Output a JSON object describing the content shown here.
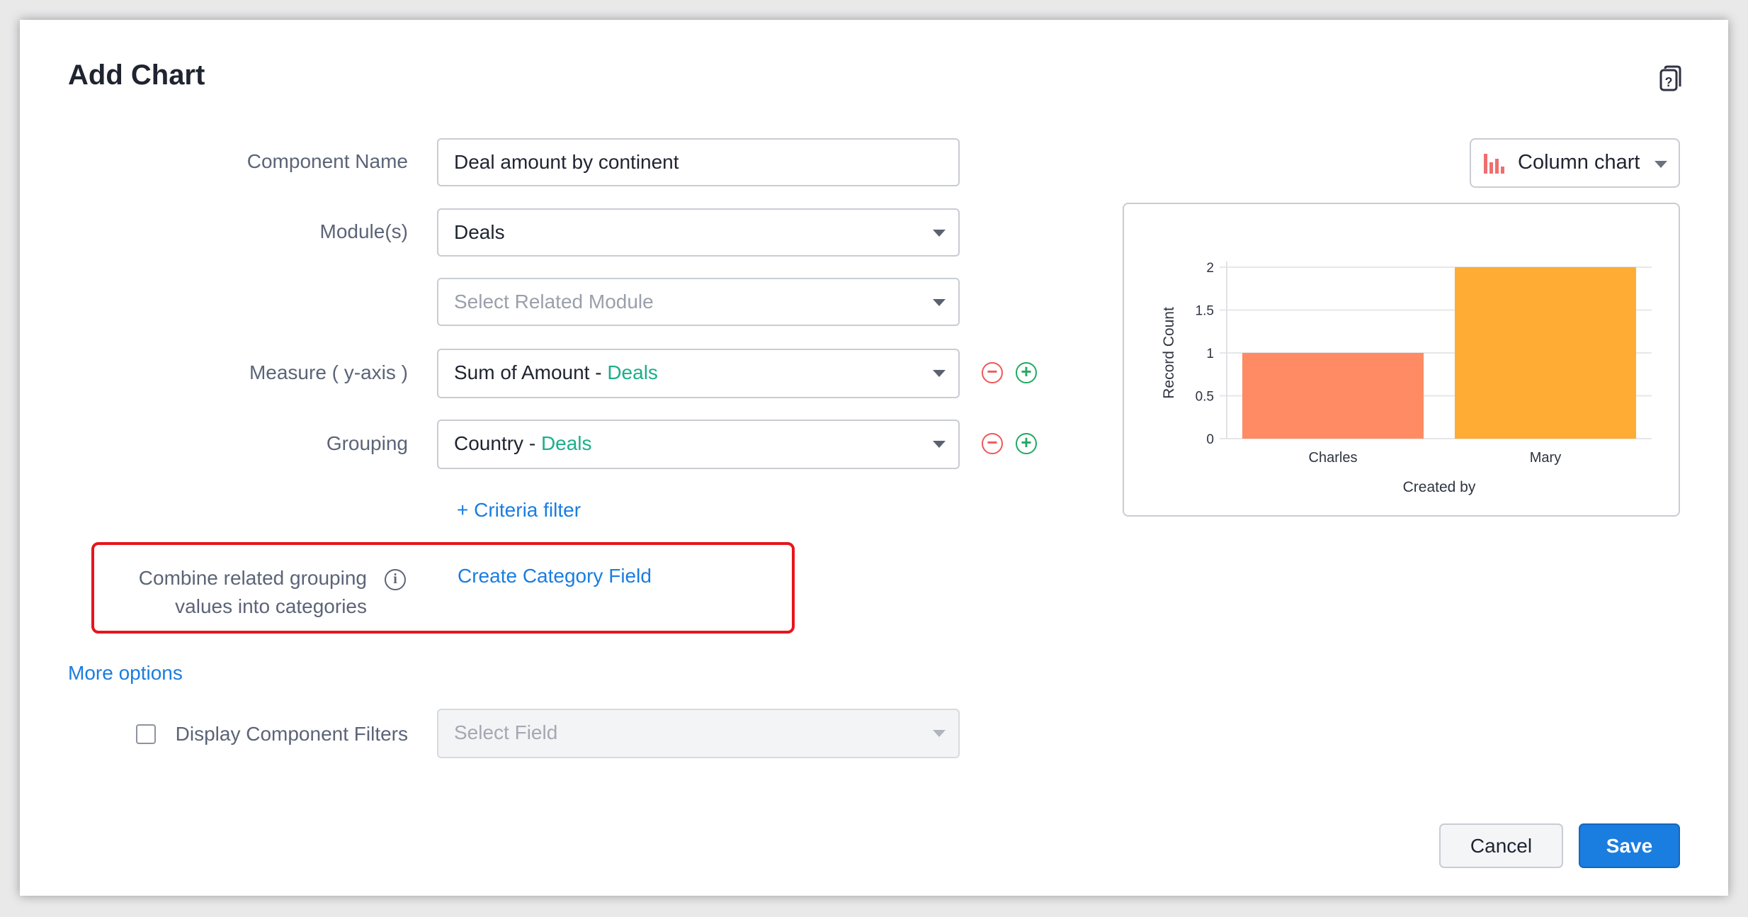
{
  "dialog": {
    "title": "Add Chart",
    "help_icon": "help-document-icon"
  },
  "form": {
    "component_name": {
      "label": "Component Name",
      "value": "Deal amount by continent"
    },
    "modules": {
      "label": "Module(s)",
      "value": "Deals"
    },
    "related_module": {
      "placeholder": "Select Related Module"
    },
    "measure": {
      "label": "Measure ( y-axis )",
      "value": "Sum of Amount - ",
      "module": "Deals"
    },
    "grouping": {
      "label": "Grouping",
      "value": "Country - ",
      "module": "Deals"
    },
    "criteria_filter": "+ Criteria filter",
    "combine": {
      "label_line1": "Combine related grouping",
      "label_line2": "values into categories",
      "link": "Create Category Field"
    },
    "more_options": "More options",
    "display_filters": {
      "label": "Display Component Filters",
      "checked": false,
      "placeholder": "Select Field"
    }
  },
  "chart_type": {
    "label": "Column chart",
    "icon": "column-chart-icon"
  },
  "chart_data": {
    "type": "bar",
    "categories": [
      "Charles",
      "Mary"
    ],
    "values": [
      1,
      2
    ],
    "colors": [
      "#fe8b64",
      "#feac33"
    ],
    "xlabel": "Created by",
    "ylabel": "Record Count",
    "ylim": [
      0,
      2
    ],
    "yticks": [
      "0",
      "0.5",
      "1",
      "1.5",
      "2"
    ],
    "grid": true
  },
  "buttons": {
    "cancel": "Cancel",
    "save": "Save"
  },
  "colors": {
    "accent": "#1a7de0",
    "highlight": "#e8141b"
  }
}
